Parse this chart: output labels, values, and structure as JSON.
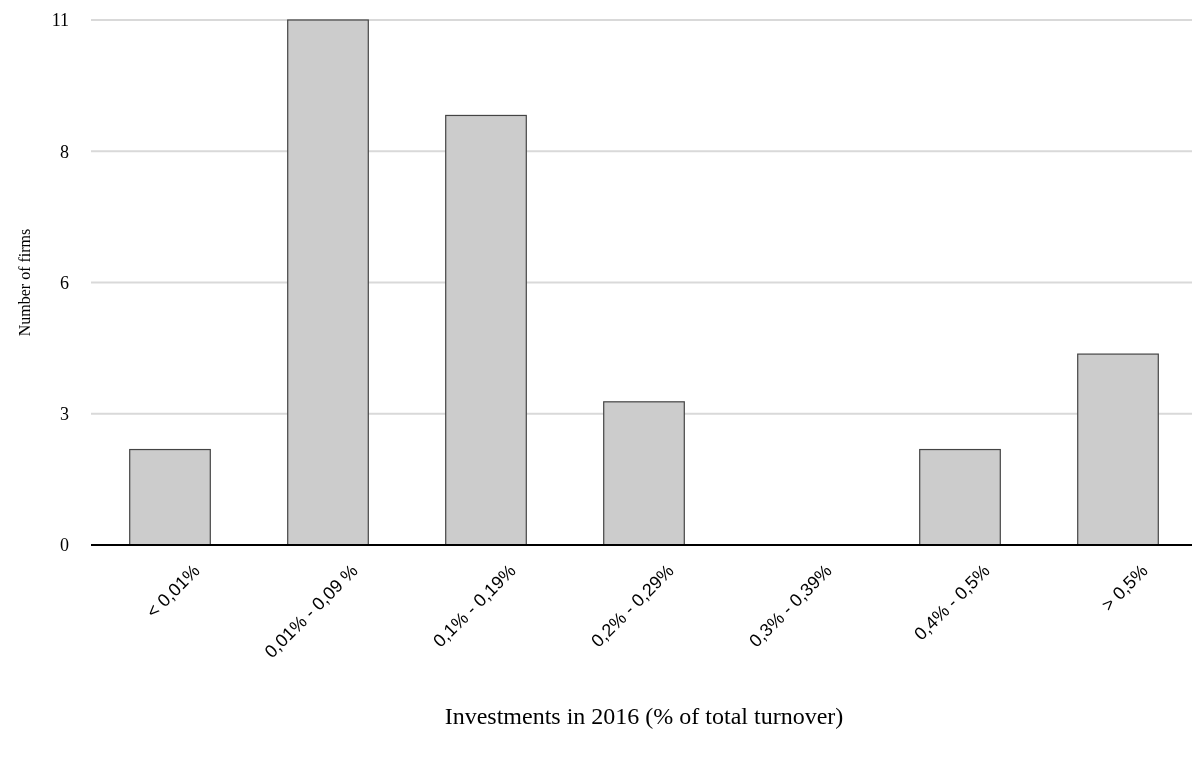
{
  "chart_data": {
    "type": "bar",
    "xlabel": "Investments in 2016 (% of total turnover)",
    "ylabel": "Number of firms",
    "categories": [
      "< 0,01%",
      "0,01% - 0,09 %",
      "0,1% - 0,19%",
      "0,2% - 0,29%",
      "0,3% - 0,39%",
      "0,4% - 0,5%",
      "> 0,5%"
    ],
    "values": [
      2,
      11,
      9,
      3,
      0,
      2,
      4
    ],
    "color": "#cccccc",
    "ylim": [
      0,
      11
    ],
    "yticks": [
      0,
      {
        "value": 2.75,
        "label": "3"
      },
      {
        "value": 5.5,
        "label": "6"
      },
      {
        "value": 8.25,
        "label": "8"
      },
      11
    ],
    "grid": "y"
  }
}
